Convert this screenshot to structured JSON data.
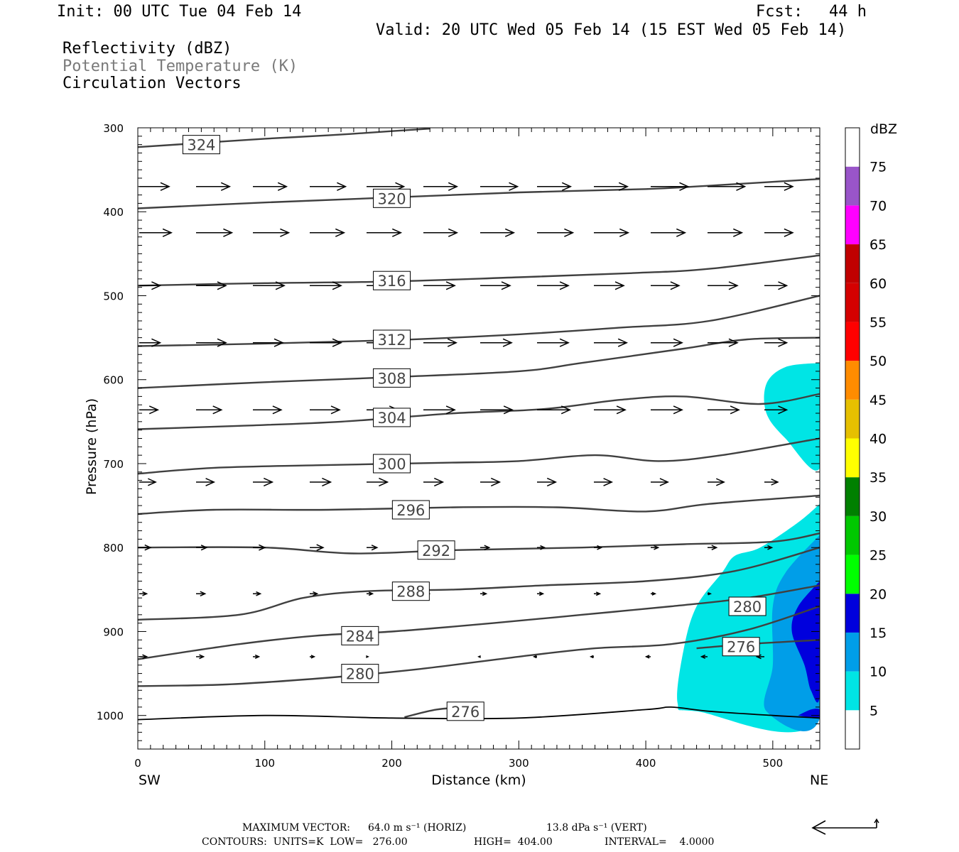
{
  "header": {
    "init": "Init: 00 UTC Tue 04 Feb 14",
    "fcst_label": "Fcst:",
    "fcst_value": "44 h",
    "valid": "Valid: 20 UTC Wed 05 Feb 14 (15 EST Wed 05 Feb 14)",
    "fields": [
      "Reflectivity (dBZ)",
      "Potential Temperature (K)",
      "Circulation Vectors"
    ]
  },
  "colors": {
    "contour": "#404040",
    "field_potential_temperature": "#7a7a7a",
    "dbz": [
      "#00e5e5",
      "#009ee8",
      "#0000dd",
      "#00ff00",
      "#00c800",
      "#008000",
      "#ffff00",
      "#e6c000",
      "#ff8c00",
      "#ff0000",
      "#d40000",
      "#c00000",
      "#ff00ff",
      "#9955c9"
    ]
  },
  "footer": {
    "max_vector_label": "MAXIMUM VECTOR:",
    "max_vector_horiz": "64.0 m s⁻¹ (HORIZ)",
    "max_vector_vert": "13.8 dPa s⁻¹ (VERT)",
    "contours": "CONTOURS:  UNITS=K  LOW=   276.00",
    "high": "HIGH=  404.00",
    "interval": "INTERVAL=    4.0000"
  },
  "chart_data": {
    "type": "cross-section",
    "xlabel": "Distance (km)",
    "ylabel": "Pressure (hPa)",
    "xlim": [
      0,
      537
    ],
    "ylim": [
      1040,
      300
    ],
    "x_ticks": [
      0,
      100,
      200,
      300,
      400,
      500
    ],
    "y_ticks": [
      300,
      400,
      500,
      600,
      700,
      800,
      900,
      1000
    ],
    "x_endpoints": {
      "left": "SW",
      "right": "NE"
    },
    "colorbar": {
      "unit": "dBZ",
      "levels": [
        5,
        10,
        15,
        20,
        25,
        30,
        35,
        40,
        45,
        50,
        55,
        60,
        65,
        70,
        75
      ]
    },
    "theta_contours": [
      {
        "label": "324",
        "label_at": [
          50,
          320
        ],
        "points": [
          [
            0,
            323
          ],
          [
            50,
            318
          ],
          [
            100,
            313
          ],
          [
            150,
            309
          ],
          [
            200,
            304
          ],
          [
            230,
            301
          ]
        ]
      },
      {
        "label": "320",
        "label_at": [
          200,
          384
        ],
        "points": [
          [
            0,
            396
          ],
          [
            100,
            389
          ],
          [
            200,
            383
          ],
          [
            300,
            377
          ],
          [
            400,
            373
          ],
          [
            460,
            368
          ],
          [
            537,
            361
          ]
        ]
      },
      {
        "label": "316",
        "label_at": [
          200,
          482
        ],
        "points": [
          [
            0,
            488
          ],
          [
            100,
            485
          ],
          [
            200,
            483
          ],
          [
            300,
            478
          ],
          [
            390,
            473
          ],
          [
            450,
            468
          ],
          [
            537,
            452
          ]
        ]
      },
      {
        "label": "312",
        "label_at": [
          200,
          552
        ],
        "points": [
          [
            0,
            560
          ],
          [
            100,
            557
          ],
          [
            200,
            553
          ],
          [
            300,
            546
          ],
          [
            380,
            538
          ],
          [
            450,
            530
          ],
          [
            537,
            500
          ]
        ]
      },
      {
        "label": "308",
        "label_at": [
          200,
          598
        ],
        "points": [
          [
            0,
            610
          ],
          [
            100,
            603
          ],
          [
            200,
            597
          ],
          [
            300,
            590
          ],
          [
            350,
            580
          ],
          [
            430,
            563
          ],
          [
            480,
            552
          ],
          [
            537,
            550
          ]
        ]
      },
      {
        "label": "304",
        "label_at": [
          200,
          645
        ],
        "points": [
          [
            0,
            659
          ],
          [
            80,
            655
          ],
          [
            160,
            650
          ],
          [
            250,
            640
          ],
          [
            320,
            635
          ],
          [
            380,
            624
          ],
          [
            430,
            620
          ],
          [
            490,
            629
          ],
          [
            537,
            617
          ]
        ]
      },
      {
        "label": "300",
        "label_at": [
          200,
          700
        ],
        "points": [
          [
            0,
            712
          ],
          [
            60,
            705
          ],
          [
            140,
            702
          ],
          [
            240,
            699
          ],
          [
            300,
            697
          ],
          [
            360,
            690
          ],
          [
            410,
            697
          ],
          [
            460,
            690
          ],
          [
            537,
            670
          ]
        ]
      },
      {
        "label": "296",
        "label_at": [
          215,
          755
        ],
        "points": [
          [
            0,
            760
          ],
          [
            60,
            755
          ],
          [
            150,
            755
          ],
          [
            250,
            752
          ],
          [
            330,
            752
          ],
          [
            400,
            757
          ],
          [
            450,
            748
          ],
          [
            537,
            738
          ]
        ]
      },
      {
        "label": "292",
        "label_at": [
          235,
          803
        ],
        "points": [
          [
            0,
            800
          ],
          [
            100,
            800
          ],
          [
            170,
            807
          ],
          [
            250,
            803
          ],
          [
            350,
            800
          ],
          [
            430,
            796
          ],
          [
            500,
            793
          ],
          [
            537,
            783
          ]
        ]
      },
      {
        "label": "288",
        "label_at": [
          215,
          852
        ],
        "points": [
          [
            0,
            886
          ],
          [
            80,
            880
          ],
          [
            130,
            860
          ],
          [
            180,
            852
          ],
          [
            250,
            850
          ],
          [
            320,
            845
          ],
          [
            400,
            840
          ],
          [
            470,
            828
          ],
          [
            537,
            800
          ]
        ]
      },
      {
        "label": "284",
        "label_at": [
          175,
          905
        ],
        "points": [
          [
            0,
            933
          ],
          [
            80,
            915
          ],
          [
            140,
            905
          ],
          [
            200,
            900
          ],
          [
            280,
            890
          ],
          [
            350,
            880
          ],
          [
            420,
            870
          ],
          [
            480,
            860
          ],
          [
            537,
            845
          ]
        ]
      },
      {
        "label": "280",
        "label_at": [
          175,
          950
        ],
        "points": [
          [
            0,
            965
          ],
          [
            70,
            963
          ],
          [
            150,
            955
          ],
          [
            220,
            945
          ],
          [
            300,
            930
          ],
          [
            360,
            920
          ],
          [
            420,
            915
          ],
          [
            480,
            898
          ],
          [
            537,
            870
          ]
        ]
      },
      {
        "label": "280",
        "label_at": [
          480,
          870
        ],
        "points": []
      },
      {
        "label": "276",
        "label_at": [
          475,
          918
        ],
        "points": [
          [
            440,
            920
          ],
          [
            480,
            915
          ],
          [
            537,
            910
          ]
        ]
      },
      {
        "label": "276",
        "label_at": [
          258,
          995
        ],
        "points": [
          [
            210,
            1002
          ],
          [
            235,
            993
          ],
          [
            260,
            990
          ]
        ]
      }
    ],
    "surface": [
      [
        0,
        1005
      ],
      [
        100,
        1000
      ],
      [
        200,
        1003
      ],
      [
        300,
        1003
      ],
      [
        400,
        993
      ],
      [
        420,
        990
      ],
      [
        450,
        995
      ],
      [
        500,
        1000
      ],
      [
        537,
        1003
      ]
    ],
    "reflectivity_regions": [
      {
        "dbz_min": 5,
        "outline": [
          [
            537,
            580
          ],
          [
            510,
            585
          ],
          [
            495,
            605
          ],
          [
            495,
            640
          ],
          [
            510,
            670
          ],
          [
            537,
            705
          ]
        ]
      },
      {
        "dbz_min": 5,
        "outline": [
          [
            537,
            748
          ],
          [
            520,
            770
          ],
          [
            490,
            800
          ],
          [
            470,
            810
          ],
          [
            460,
            830
          ],
          [
            440,
            870
          ],
          [
            430,
            920
          ],
          [
            425,
            985
          ],
          [
            440,
            995
          ],
          [
            537,
            1003
          ]
        ]
      },
      {
        "dbz_min": 10,
        "outline": [
          [
            537,
            785
          ],
          [
            510,
            830
          ],
          [
            500,
            870
          ],
          [
            500,
            940
          ],
          [
            495,
            995
          ],
          [
            537,
            1003
          ]
        ]
      },
      {
        "dbz_min": 15,
        "outline": [
          [
            537,
            840
          ],
          [
            520,
            870
          ],
          [
            515,
            900
          ],
          [
            525,
            940
          ],
          [
            530,
            970
          ],
          [
            537,
            975
          ]
        ]
      },
      {
        "dbz_min": 15,
        "outline": [
          [
            520,
            1000
          ],
          [
            530,
            993
          ],
          [
            537,
            993
          ],
          [
            537,
            1003
          ]
        ]
      }
    ],
    "vector_rows": [
      {
        "p": 370,
        "dx": [
          40,
          45,
          45,
          48,
          50,
          45,
          50,
          45,
          45,
          50,
          50,
          38
        ]
      },
      {
        "p": 425,
        "dx": [
          43,
          48,
          48,
          46,
          46,
          45,
          45,
          48,
          46,
          46,
          46,
          38
        ]
      },
      {
        "p": 488,
        "dx": [
          28,
          40,
          42,
          42,
          42,
          42,
          40,
          42,
          40,
          38,
          40,
          30
        ]
      },
      {
        "p": 556,
        "dx": [
          28,
          40,
          40,
          42,
          46,
          44,
          42,
          42,
          44,
          42,
          40,
          30
        ]
      },
      {
        "p": 636,
        "dx": [
          25,
          34,
          38,
          40,
          42,
          42,
          43,
          44,
          42,
          42,
          42,
          30
        ]
      },
      {
        "p": 722,
        "dx": [
          22,
          24,
          26,
          28,
          28,
          26,
          26,
          25,
          24,
          23,
          22,
          18
        ]
      },
      {
        "p": 800,
        "dx": [
          15,
          14,
          16,
          18,
          14,
          14,
          12,
          10,
          10,
          10,
          12,
          10
        ]
      },
      {
        "p": 855,
        "dx": [
          10,
          12,
          10,
          10,
          8,
          8,
          8,
          8,
          8,
          6,
          4,
          0
        ]
      },
      {
        "p": 930,
        "dx": [
          10,
          10,
          8,
          6,
          2,
          0,
          -2,
          -4,
          -4,
          -6,
          -8,
          -10
        ]
      }
    ]
  }
}
